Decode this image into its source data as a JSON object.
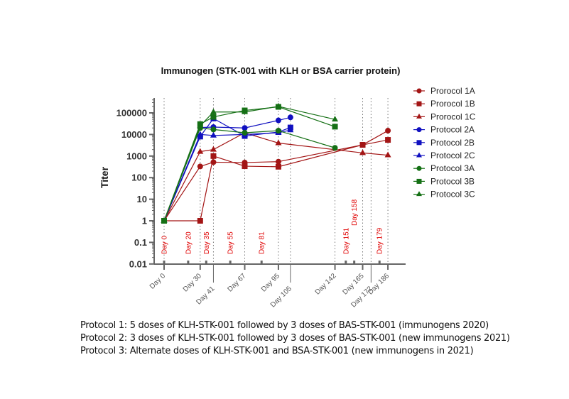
{
  "chart_data": {
    "type": "line",
    "title": "Immunogen (STK-001 with KLH or BSA carrier protein)",
    "xlabel": "",
    "ylabel": "Titer",
    "yscale": "log",
    "ylim": [
      0.01,
      300000
    ],
    "xlim": [
      -8,
      191
    ],
    "y_ticks": [
      {
        "value": 0.01,
        "label": "0.01"
      },
      {
        "value": 0.1,
        "label": "0.1"
      },
      {
        "value": 1,
        "label": "1"
      },
      {
        "value": 10,
        "label": "10"
      },
      {
        "value": 100,
        "label": "100"
      },
      {
        "value": 1000,
        "label": "1000"
      },
      {
        "value": 10000,
        "label": "10000"
      },
      {
        "value": 100000,
        "label": "100000"
      }
    ],
    "x_ticks": [
      {
        "value": 0,
        "label": "Day 0"
      },
      {
        "value": 30,
        "label": "Day 30"
      },
      {
        "value": 41,
        "label": "Day 41"
      },
      {
        "value": 67,
        "label": "Day 67"
      },
      {
        "value": 95,
        "label": "Day 95"
      },
      {
        "value": 105,
        "label": "Day 105"
      },
      {
        "value": 142,
        "label": "Day 142"
      },
      {
        "value": 165,
        "label": "Day 165"
      },
      {
        "value": 172,
        "label": "Day 172"
      },
      {
        "value": 186,
        "label": "Day 186"
      }
    ],
    "dose_annotations": [
      {
        "day": 0,
        "label": "Day 0"
      },
      {
        "day": 20,
        "label": "Day 20"
      },
      {
        "day": 35,
        "label": "Day 35"
      },
      {
        "day": 55,
        "label": "Day 55"
      },
      {
        "day": 81,
        "label": "Day 81"
      },
      {
        "day": 151,
        "label": "Day 151"
      },
      {
        "day": 158,
        "label": "Day 158"
      },
      {
        "day": 179,
        "label": "Day 179"
      }
    ],
    "grid": "vertical dotted lines at sampling days",
    "legend_position": "right",
    "series": [
      {
        "name": "Prorocol 1A",
        "color": "#a31515",
        "marker": "circle",
        "x": [
          0,
          30,
          41,
          67,
          95,
          165,
          186
        ],
        "y": [
          1,
          330,
          520,
          500,
          550,
          3300,
          15000
        ]
      },
      {
        "name": "Prorocol 1B",
        "color": "#a31515",
        "marker": "square",
        "x": [
          0,
          30,
          41,
          67,
          95,
          165,
          186
        ],
        "y": [
          1,
          1,
          1000,
          340,
          320,
          3300,
          5600
        ]
      },
      {
        "name": "Prorocol 1C",
        "color": "#a31515",
        "marker": "triangle",
        "x": [
          0,
          30,
          41,
          67,
          95,
          165,
          186
        ],
        "y": [
          1,
          1600,
          2000,
          12000,
          4000,
          1400,
          1100
        ]
      },
      {
        "name": "Protocol 2A",
        "color": "#1010c0",
        "marker": "circle",
        "x": [
          0,
          30,
          41,
          67,
          95,
          105
        ],
        "y": [
          1,
          21000,
          22000,
          20000,
          45000,
          62000
        ]
      },
      {
        "name": "Protocol 2B",
        "color": "#1010c0",
        "marker": "square",
        "x": [
          0,
          30,
          41,
          67,
          95,
          105
        ],
        "y": [
          1,
          8000,
          55000,
          8500,
          13000,
          21000
        ]
      },
      {
        "name": "Protocol 2C",
        "color": "#1010c0",
        "marker": "triangle",
        "x": [
          0,
          30,
          41,
          67,
          95,
          105
        ],
        "y": [
          1,
          10000,
          9000,
          10000,
          12000,
          16000
        ]
      },
      {
        "name": "Protocol 3A",
        "color": "#157015",
        "marker": "circle",
        "x": [
          0,
          30,
          41,
          67,
          95,
          142
        ],
        "y": [
          1,
          20000,
          17000,
          12000,
          15000,
          2400
        ]
      },
      {
        "name": "Protocol 3B",
        "color": "#157015",
        "marker": "square",
        "x": [
          0,
          30,
          41,
          67,
          95,
          142
        ],
        "y": [
          1,
          30000,
          65000,
          130000,
          190000,
          23000
        ]
      },
      {
        "name": "Protocol 3C",
        "color": "#157015",
        "marker": "triangle",
        "x": [
          0,
          30,
          41,
          67,
          95,
          142
        ],
        "y": [
          1,
          25000,
          110000,
          110000,
          200000,
          50000
        ]
      }
    ]
  },
  "notes": [
    "Protocol 1: 5 doses of KLH-STK-001 followed by 3 doses of BAS-STK-001 (immunogens 2020)",
    "Protocol 2: 3 doses of KLH-STK-001 followed by 3 doses of BAS-STK-001 (new immunogens 2021)",
    "Protocol 3: Alternate doses of KLH-STK-001 and BSA-STK-001 (new immunogens in 2021)"
  ]
}
